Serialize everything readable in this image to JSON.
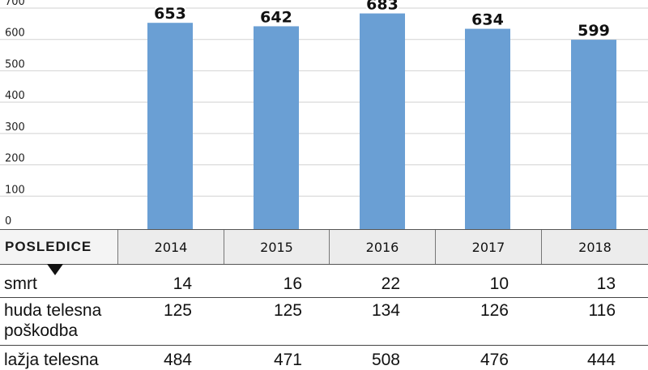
{
  "chart_data": {
    "type": "bar",
    "categories": [
      "2014",
      "2015",
      "2016",
      "2017",
      "2018"
    ],
    "values": [
      653,
      642,
      683,
      634,
      599
    ],
    "yticks": [
      0,
      100,
      200,
      300,
      400,
      500,
      600,
      700
    ],
    "ylim": [
      0,
      700
    ],
    "bar_color": "#6a9fd4",
    "grid": true
  },
  "table": {
    "header_label": "POSLEDICE",
    "years": [
      "2014",
      "2015",
      "2016",
      "2017",
      "2018"
    ],
    "rows": [
      {
        "label": "smrt",
        "values": [
          "14",
          "16",
          "22",
          "10",
          "13"
        ]
      },
      {
        "label": "huda telesna poškodba",
        "values": [
          "125",
          "125",
          "134",
          "126",
          "116"
        ]
      },
      {
        "label": "lažja telesna",
        "values": [
          "484",
          "471",
          "508",
          "476",
          "444"
        ]
      }
    ]
  }
}
